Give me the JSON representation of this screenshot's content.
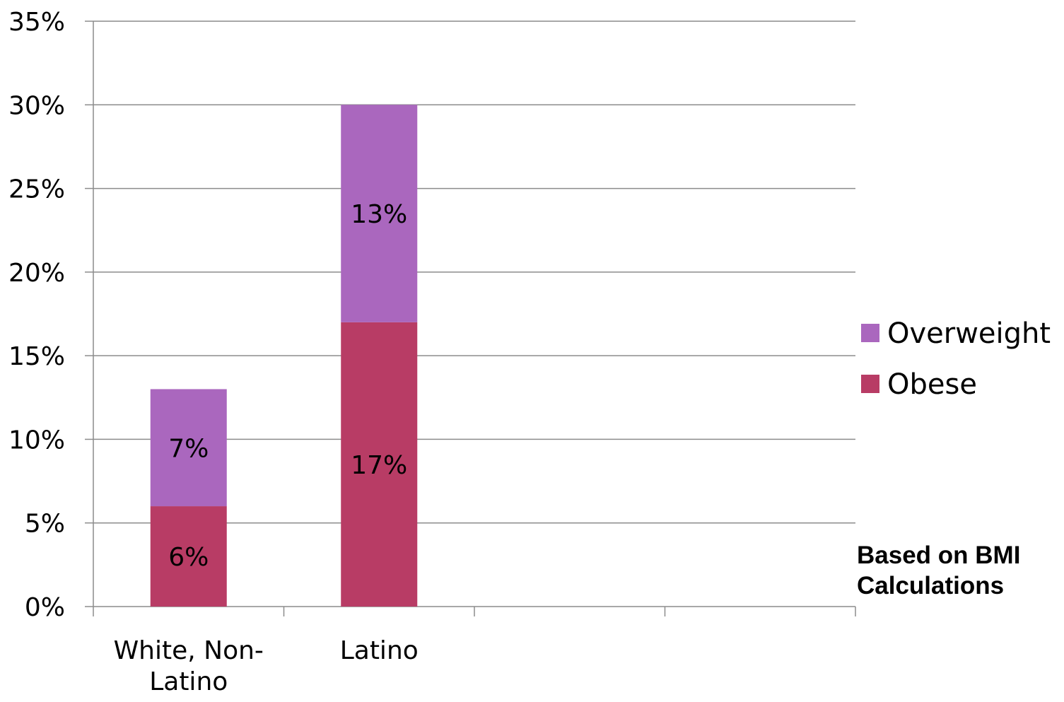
{
  "chart_data": {
    "type": "bar",
    "stacked": true,
    "categories": [
      "White, Non-Latino",
      "Latino",
      "",
      ""
    ],
    "series": [
      {
        "name": "Obese",
        "values": [
          6,
          17,
          null,
          null
        ],
        "labels": [
          "6%",
          "17%",
          "",
          ""
        ],
        "color": "#b83c65"
      },
      {
        "name": "Overweight",
        "values": [
          7,
          13,
          null,
          null
        ],
        "labels": [
          "7%",
          "13%",
          "",
          ""
        ],
        "color": "#aa67be"
      }
    ],
    "ylim": [
      0,
      35
    ],
    "yticks": [
      0,
      5,
      10,
      15,
      20,
      25,
      30,
      35
    ],
    "ytick_labels": [
      "0%",
      "5%",
      "10%",
      "15%",
      "20%",
      "25%",
      "30%",
      "35%"
    ],
    "grid": true,
    "legend_position": "right",
    "legend": [
      "Overweight",
      "Obese"
    ],
    "note": "Based on BMI Calculations",
    "xlabel": "",
    "ylabel": ""
  }
}
